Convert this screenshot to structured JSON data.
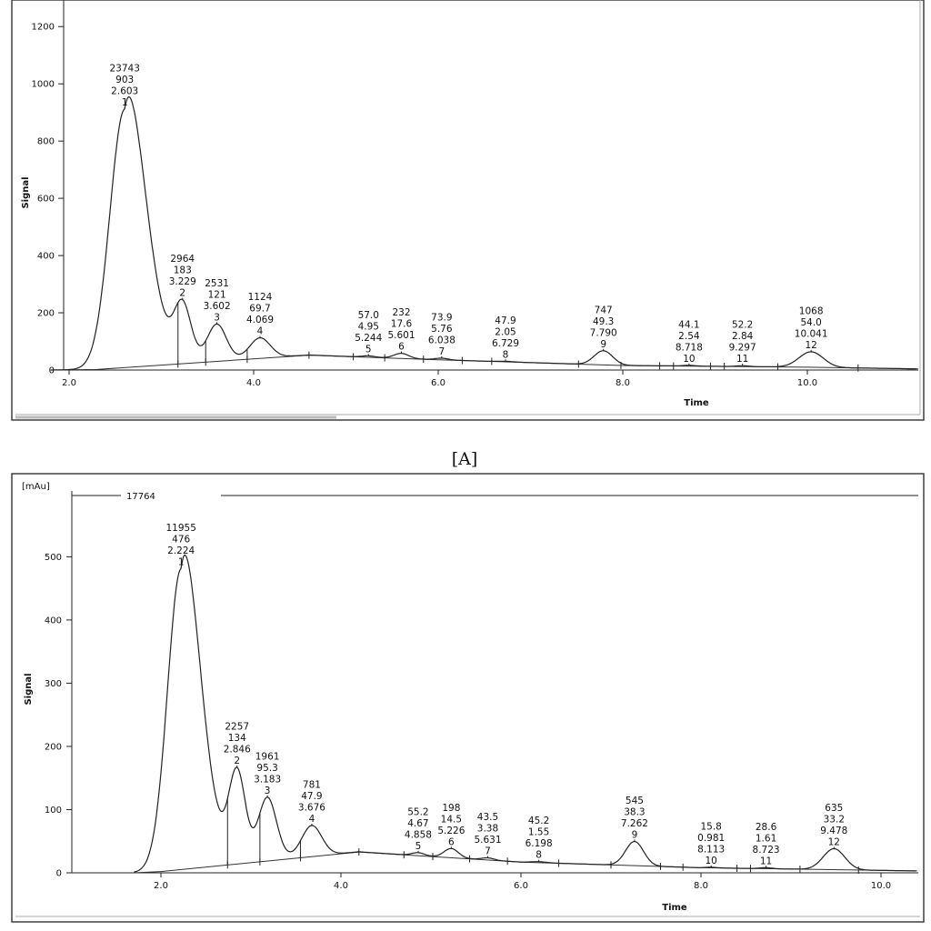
{
  "chart_data": [
    {
      "type": "line",
      "panel": "A",
      "caption": "[A]",
      "ylabel": "Signal",
      "xlabel": "Time",
      "unit_label": "",
      "top_value": "",
      "xlim": [
        2.0,
        11.2
      ],
      "ylim": [
        0,
        1250
      ],
      "xticks": [
        "2.0",
        "4.0",
        "6.0",
        "8.0",
        "10.0"
      ],
      "yticks": [
        "0",
        "200",
        "400",
        "600",
        "800",
        "1000",
        "1200"
      ],
      "baseline": [
        [
          1.8,
          0
        ],
        [
          2.3,
          2
        ],
        [
          4.6,
          52
        ],
        [
          6.0,
          36
        ],
        [
          8.0,
          16
        ],
        [
          10.0,
          10
        ],
        [
          11.2,
          4
        ]
      ],
      "peaks": [
        {
          "num": "1",
          "area": "23743",
          "height": "903",
          "rt": "2.603",
          "t": 2.603,
          "h": 903,
          "w": 0.16
        },
        {
          "num": "2",
          "area": "2964",
          "height": "183",
          "rt": "3.229",
          "t": 3.229,
          "h": 183,
          "w": 0.09
        },
        {
          "num": "3",
          "area": "2531",
          "height": "121",
          "rt": "3.602",
          "t": 3.602,
          "h": 121,
          "w": 0.1
        },
        {
          "num": "4",
          "area": "1124",
          "height": "69.7",
          "rt": "4.069",
          "t": 4.069,
          "h": 69.7,
          "w": 0.11
        },
        {
          "num": "5",
          "area": "57.0",
          "height": "4.95",
          "rt": "5.244",
          "t": 5.244,
          "h": 4.95,
          "w": 0.07
        },
        {
          "num": "6",
          "area": "232",
          "height": "17.6",
          "rt": "5.601",
          "t": 5.601,
          "h": 17.6,
          "w": 0.08
        },
        {
          "num": "7",
          "area": "73.9",
          "height": "5.76",
          "rt": "6.038",
          "t": 6.038,
          "h": 5.76,
          "w": 0.07
        },
        {
          "num": "8",
          "area": "47.9",
          "height": "2.05",
          "rt": "6.729",
          "t": 6.729,
          "h": 2.05,
          "w": 0.08
        },
        {
          "num": "9",
          "area": "747",
          "height": "49.3",
          "rt": "7.790",
          "t": 7.79,
          "h": 49.3,
          "w": 0.1
        },
        {
          "num": "10",
          "area": "44.1",
          "height": "2.54",
          "rt": "8.718",
          "t": 8.718,
          "h": 2.54,
          "w": 0.07
        },
        {
          "num": "11",
          "area": "52.2",
          "height": "2.84",
          "rt": "9.297",
          "t": 9.297,
          "h": 2.84,
          "w": 0.07
        },
        {
          "num": "12",
          "area": "1068",
          "height": "54.0",
          "rt": "10.041",
          "t": 10.041,
          "h": 54.0,
          "w": 0.13
        }
      ],
      "drops": [
        3.18,
        3.48,
        3.93
      ],
      "markers": [
        3.18,
        3.48,
        3.93,
        4.6,
        5.08,
        5.42,
        5.84,
        6.26,
        6.58,
        7.52,
        7.98,
        8.4,
        8.55,
        8.95,
        9.1,
        9.68,
        10.55
      ]
    },
    {
      "type": "line",
      "panel": "B",
      "caption": "",
      "ylabel": "Signal",
      "xlabel": "Time",
      "unit_label": "[mAu]",
      "top_value": "17764",
      "xlim": [
        1.0,
        10.4
      ],
      "ylim": [
        0,
        590
      ],
      "xticks": [
        "2.0",
        "4.0",
        "6.0",
        "8.0",
        "10.0"
      ],
      "yticks": [
        "0",
        "100",
        "200",
        "300",
        "400",
        "500"
      ],
      "baseline": [
        [
          1.7,
          0
        ],
        [
          2.0,
          2
        ],
        [
          4.2,
          33
        ],
        [
          6.0,
          17
        ],
        [
          8.0,
          8
        ],
        [
          10.4,
          3
        ]
      ],
      "peaks": [
        {
          "num": "1",
          "area": "11955",
          "height": "476",
          "rt": "2.224",
          "t": 2.224,
          "h": 476,
          "w": 0.15
        },
        {
          "num": "2",
          "area": "2257",
          "height": "134",
          "rt": "2.846",
          "t": 2.846,
          "h": 134,
          "w": 0.09
        },
        {
          "num": "3",
          "area": "1961",
          "height": "95.3",
          "rt": "3.183",
          "t": 3.183,
          "h": 95.3,
          "w": 0.1
        },
        {
          "num": "4",
          "area": "781",
          "height": "47.9",
          "rt": "3.676",
          "t": 3.676,
          "h": 47.9,
          "w": 0.11
        },
        {
          "num": "5",
          "area": "55.2",
          "height": "4.67",
          "rt": "4.858",
          "t": 4.858,
          "h": 4.67,
          "w": 0.07
        },
        {
          "num": "6",
          "area": "198",
          "height": "14.5",
          "rt": "5.226",
          "t": 5.226,
          "h": 14.5,
          "w": 0.08
        },
        {
          "num": "7",
          "area": "43.5",
          "height": "3.38",
          "rt": "5.631",
          "t": 5.631,
          "h": 3.38,
          "w": 0.07
        },
        {
          "num": "8",
          "area": "45.2",
          "height": "1.55",
          "rt": "6.198",
          "t": 6.198,
          "h": 1.55,
          "w": 0.08
        },
        {
          "num": "9",
          "area": "545",
          "height": "38.3",
          "rt": "7.262",
          "t": 7.262,
          "h": 38.3,
          "w": 0.1
        },
        {
          "num": "10",
          "area": "15.8",
          "height": "0.981",
          "rt": "8.113",
          "t": 8.113,
          "h": 0.981,
          "w": 0.07
        },
        {
          "num": "11",
          "area": "28.6",
          "height": "1.61",
          "rt": "8.723",
          "t": 8.723,
          "h": 1.61,
          "w": 0.07
        },
        {
          "num": "12",
          "area": "635",
          "height": "33.2",
          "rt": "9.478",
          "t": 9.478,
          "h": 33.2,
          "w": 0.12
        }
      ],
      "drops": [
        2.74,
        3.1,
        3.55
      ],
      "markers": [
        2.74,
        3.1,
        3.55,
        4.2,
        4.7,
        5.02,
        5.43,
        5.85,
        6.42,
        7.0,
        7.55,
        7.8,
        8.4,
        8.55,
        9.1,
        9.75
      ]
    }
  ]
}
